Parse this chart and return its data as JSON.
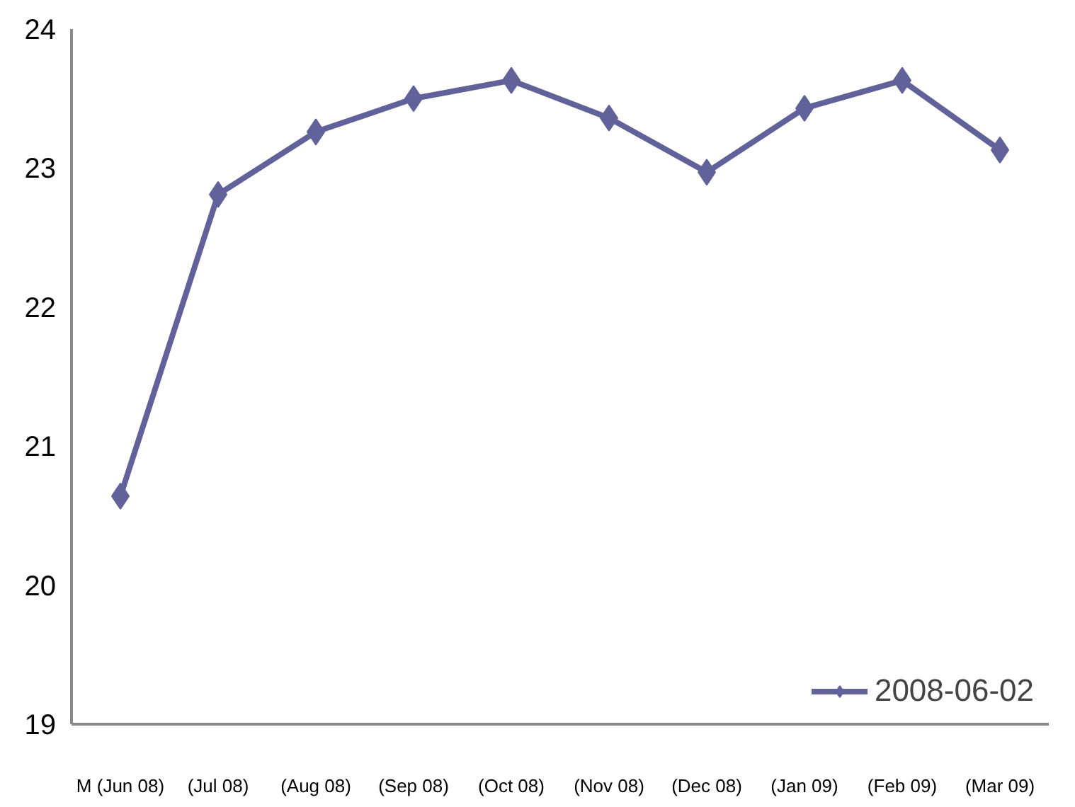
{
  "chart_data": {
    "type": "line",
    "categories": [
      "M (Jun 08)",
      "(Jul 08)",
      "(Aug 08)",
      "(Sep 08)",
      "(Oct 08)",
      "(Nov 08)",
      "(Dec 08)",
      "(Jan 09)",
      "(Feb 09)",
      "(Mar 09)"
    ],
    "series": [
      {
        "name": "2008-06-02",
        "color": "#62629a",
        "values": [
          20.64,
          22.81,
          23.26,
          23.5,
          23.63,
          23.36,
          22.97,
          23.43,
          23.63,
          23.13
        ]
      }
    ],
    "ylim": [
      19,
      24
    ],
    "yticks": [
      19,
      20,
      21,
      22,
      23,
      24
    ],
    "grid": false,
    "legend": "bottom right",
    "marker": "diamond",
    "line_style": "solid"
  }
}
